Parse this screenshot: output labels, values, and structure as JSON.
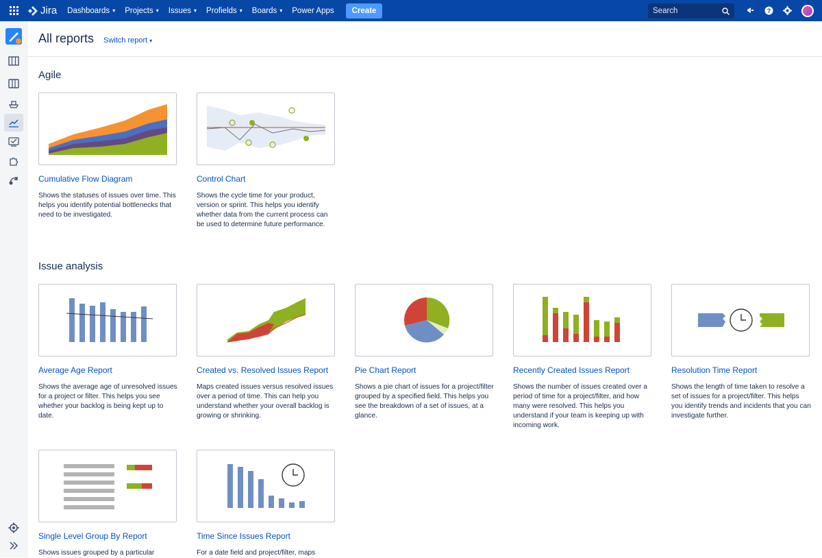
{
  "topbar": {
    "logo_text": "Jira",
    "nav": [
      {
        "label": "Dashboards",
        "dropdown": true
      },
      {
        "label": "Projects",
        "dropdown": true
      },
      {
        "label": "Issues",
        "dropdown": true
      },
      {
        "label": "Profields",
        "dropdown": true
      },
      {
        "label": "Boards",
        "dropdown": true
      },
      {
        "label": "Power Apps",
        "dropdown": false
      }
    ],
    "create_label": "Create",
    "search_placeholder": "Search",
    "brand_color": "#0747a6",
    "accent_color": "#4c9aff"
  },
  "sidebar": {
    "items": [
      "board-icon",
      "columns-icon",
      "ship-icon",
      "reports-icon",
      "issues-icon",
      "puzzle-icon",
      "release-icon"
    ],
    "active": "reports-icon",
    "bottom": [
      "settings-icon",
      "expand-icon"
    ]
  },
  "header": {
    "title": "All reports",
    "switch_label": "Switch report"
  },
  "sections": [
    {
      "title": "Agile",
      "reports": [
        {
          "title": "Cumulative Flow Diagram",
          "desc": "Shows the statuses of issues over time. This helps you identify potential bottlenecks that need to be investigated.",
          "thumb": "cumulative-flow"
        },
        {
          "title": "Control Chart",
          "desc": "Shows the cycle time for your product, version or sprint. This helps you identify whether data from the current process can be used to determine future performance.",
          "thumb": "control-chart"
        }
      ]
    },
    {
      "title": "Issue analysis",
      "reports": [
        {
          "title": "Average Age Report",
          "desc": "Shows the average age of unresolved issues for a project or filter. This helps you see whether your backlog is being kept up to date.",
          "thumb": "average-age"
        },
        {
          "title": "Created vs. Resolved Issues Report",
          "desc": "Maps created issues versus resolved issues over a period of time. This can help you understand whether your overall backlog is growing or shrinking.",
          "thumb": "created-resolved"
        },
        {
          "title": "Pie Chart Report",
          "desc": "Shows a pie chart of issues for a project/filter grouped by a specified field. This helps you see the breakdown of a set of issues, at a glance.",
          "thumb": "pie-chart"
        },
        {
          "title": "Recently Created Issues Report",
          "desc": "Shows the number of issues created over a period of time for a project/filter, and how many were resolved. This helps you understand if your team is keeping up with incoming work.",
          "thumb": "recently-created"
        },
        {
          "title": "Resolution Time Report",
          "desc": "Shows the length of time taken to resolve a set of issues for a project/filter. This helps you identify trends and incidents that you can investigate further.",
          "thumb": "resolution-time"
        },
        {
          "title": "Single Level Group By Report",
          "desc": "Shows issues grouped by a particular",
          "thumb": "single-level"
        },
        {
          "title": "Time Since Issues Report",
          "desc": "For a date field and project/filter, maps",
          "thumb": "time-since"
        }
      ]
    }
  ]
}
